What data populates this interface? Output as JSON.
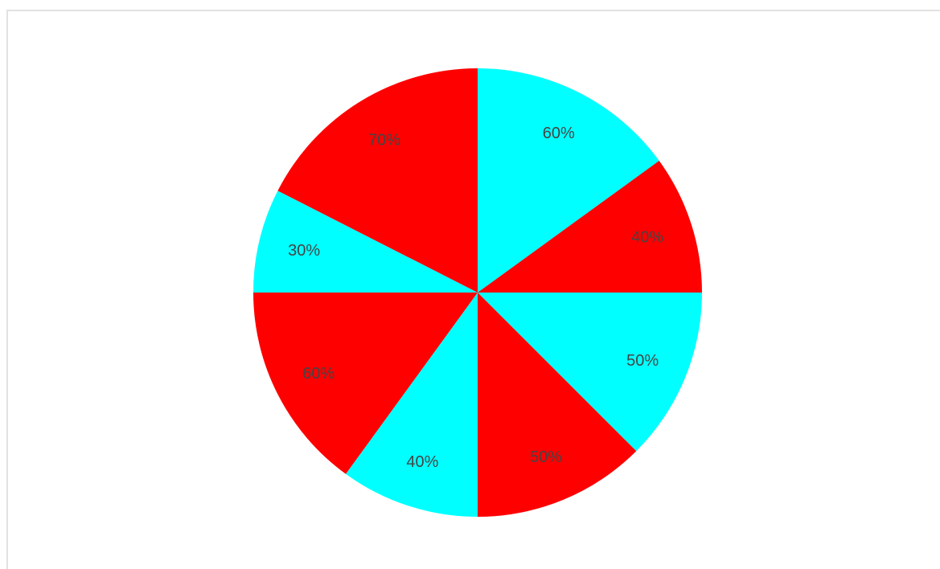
{
  "chart_data": {
    "type": "pie",
    "title": "",
    "slices": [
      {
        "label": "60%",
        "value": 60,
        "color": "#00ffff"
      },
      {
        "label": "40%",
        "value": 40,
        "color": "#ff0000"
      },
      {
        "label": "50%",
        "value": 50,
        "color": "#00ffff"
      },
      {
        "label": "50%",
        "value": 50,
        "color": "#ff0000"
      },
      {
        "label": "40%",
        "value": 40,
        "color": "#00ffff"
      },
      {
        "label": "60%",
        "value": 60,
        "color": "#ff0000"
      },
      {
        "label": "30%",
        "value": 30,
        "color": "#00ffff"
      },
      {
        "label": "70%",
        "value": 70,
        "color": "#ff0000"
      }
    ],
    "label_color": "#444444"
  }
}
